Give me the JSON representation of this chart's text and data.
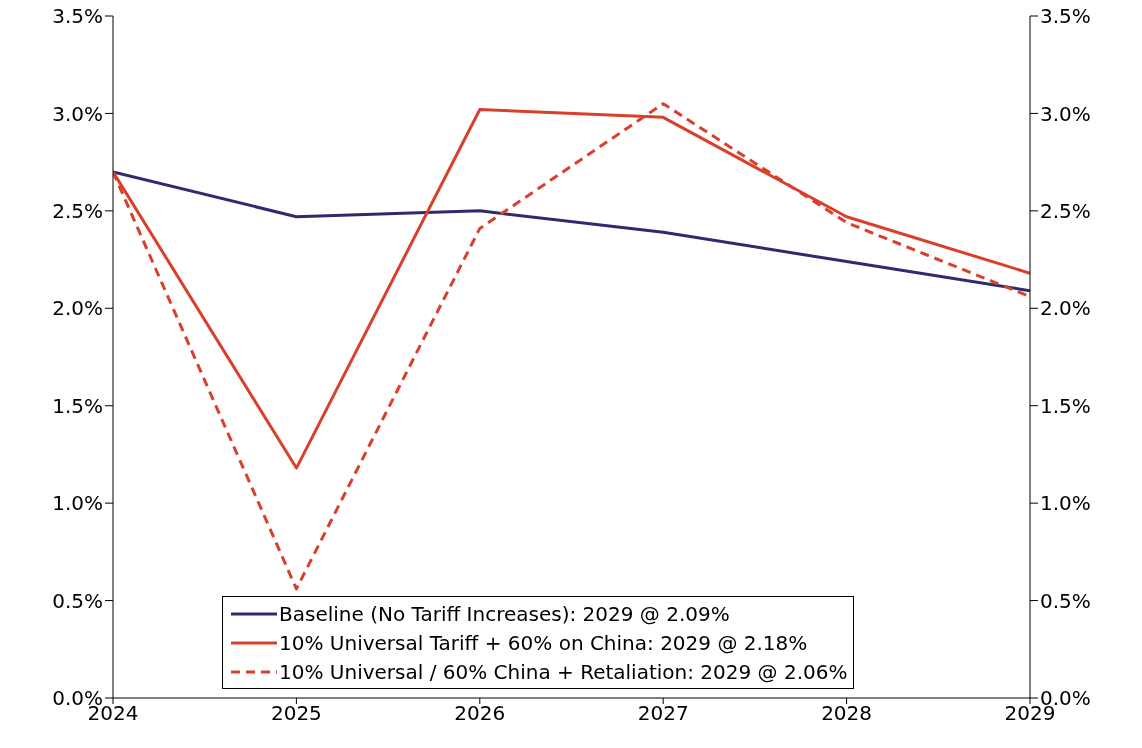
{
  "chart_data": {
    "type": "line",
    "x": [
      2024,
      2025,
      2026,
      2027,
      2028,
      2029
    ],
    "xlim": [
      2024,
      2029
    ],
    "xticks": [
      2024,
      2025,
      2026,
      2027,
      2028,
      2029
    ],
    "ylim": [
      0,
      3.5
    ],
    "yticks": [
      {
        "value": 0,
        "label": "0.0%"
      },
      {
        "value": 0.5,
        "label": "0.5%"
      },
      {
        "value": 1,
        "label": "1.0%"
      },
      {
        "value": 1.5,
        "label": "1.5%"
      },
      {
        "value": 2,
        "label": "2.0%"
      },
      {
        "value": 2.5,
        "label": "2.5%"
      },
      {
        "value": 3,
        "label": "3.0%"
      },
      {
        "value": 3.5,
        "label": "3.5%"
      }
    ],
    "y2lim": [
      0,
      3.5
    ],
    "y2ticks": [
      {
        "value": 0,
        "label": "0.0%"
      },
      {
        "value": 0.5,
        "label": "0.5%"
      },
      {
        "value": 1,
        "label": "1.0%"
      },
      {
        "value": 1.5,
        "label": "1.5%"
      },
      {
        "value": 2,
        "label": "2.0%"
      },
      {
        "value": 2.5,
        "label": "2.5%"
      },
      {
        "value": 3,
        "label": "3.0%"
      },
      {
        "value": 3.5,
        "label": "3.5%"
      }
    ],
    "series": [
      {
        "name": "Baseline (No Tariff Increases): 2029 @ 2.09%",
        "color": "#2e2a6e",
        "line_style": "solid",
        "values": [
          2.7,
          2.47,
          2.5,
          2.39,
          2.24,
          2.09
        ]
      },
      {
        "name": "10% Universal Tariff + 60% on China: 2029 @ 2.18%",
        "color": "#d9402b",
        "line_style": "solid",
        "values": [
          2.7,
          1.18,
          3.02,
          2.98,
          2.47,
          2.18
        ]
      },
      {
        "name": "10% Universal / 60% China + Retaliation: 2029 @ 2.06%",
        "color": "#d9402b",
        "line_style": "dashed",
        "values": [
          2.7,
          0.56,
          2.41,
          3.05,
          2.44,
          2.06
        ]
      }
    ],
    "legend": "bottom right",
    "grid": false,
    "marker": "none"
  }
}
